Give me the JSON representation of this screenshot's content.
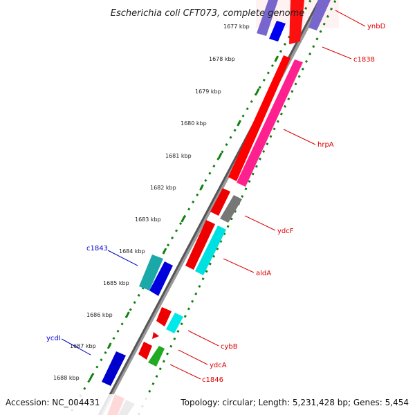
{
  "title": "Escherichia coli CFT073, complete genome",
  "ticks": [
    "1677 kbp",
    "1678 kbp",
    "1679 kbp",
    "1680 kbp",
    "1681 kbp",
    "1682 kbp",
    "1683 kbp",
    "1684 kbp",
    "1685 kbp",
    "1686 kbp",
    "1687 kbp",
    "1688 kbp"
  ],
  "genes": [
    {
      "name": "ynbD",
      "color": "#dd0000"
    },
    {
      "name": "c1838",
      "color": "#dd0000"
    },
    {
      "name": "hrpA",
      "color": "#dd0000"
    },
    {
      "name": "ydcF",
      "color": "#dd0000"
    },
    {
      "name": "aldA",
      "color": "#dd0000"
    },
    {
      "name": "cybB",
      "color": "#dd0000"
    },
    {
      "name": "ydcA",
      "color": "#dd0000"
    },
    {
      "name": "c1846",
      "color": "#dd0000"
    },
    {
      "name": "c1843",
      "color": "#0000cc"
    },
    {
      "name": "ycdI",
      "color": "#0000cc"
    }
  ],
  "footer": {
    "accession": "Accession: NC_004431",
    "summary": "Topology: circular; Length: 5,231,428 bp; Genes: 5,454"
  }
}
